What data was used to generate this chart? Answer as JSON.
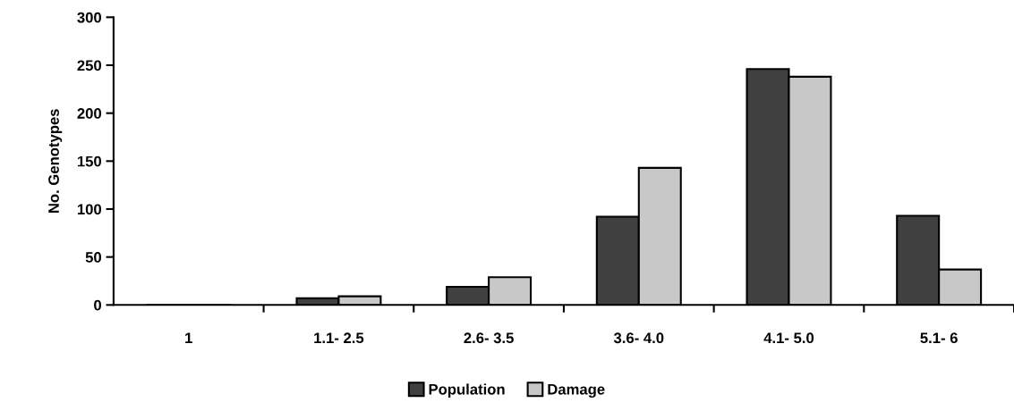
{
  "chart_data": {
    "type": "bar",
    "ylabel": "No. Genotypes",
    "categories": [
      "1",
      "1.1- 2.5",
      "2.6- 3.5",
      "3.6- 4.0",
      "4.1- 5.0",
      "5.1- 6"
    ],
    "series": [
      {
        "name": "Population",
        "color": "#404040",
        "values": [
          0,
          7,
          19,
          92,
          246,
          93
        ]
      },
      {
        "name": "Damage",
        "color": "#c8c8c8",
        "values": [
          0,
          9,
          29,
          143,
          238,
          37
        ]
      }
    ],
    "ylim": [
      0,
      300
    ],
    "yticks": [
      0,
      50,
      100,
      150,
      200,
      250,
      300
    ],
    "grid": false,
    "legend": "bottom"
  }
}
